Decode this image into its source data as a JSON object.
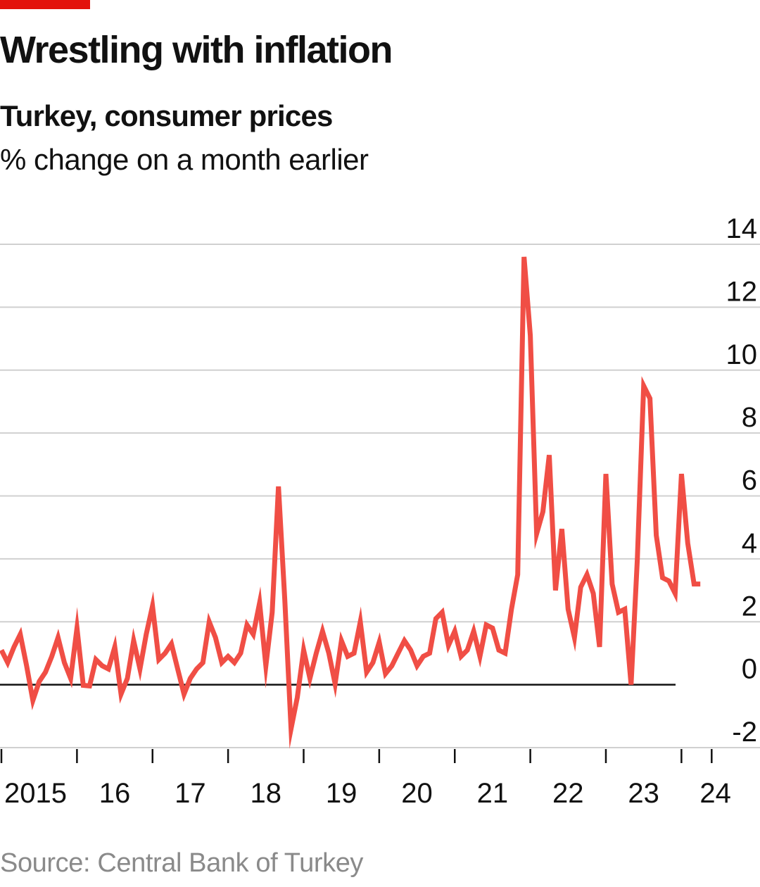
{
  "header": {
    "title": "Wrestling with inflation",
    "subtitle": "Turkey, consumer prices",
    "unit": "% change on a month earlier"
  },
  "footer": {
    "source": "Source: Central Bank of Turkey"
  },
  "colors": {
    "line": "#f04e45",
    "accent": "#e3120b",
    "grid": "#d0d0d0",
    "axis": "#111111"
  },
  "chart_data": {
    "type": "line",
    "title": "Wrestling with inflation",
    "subtitle": "Turkey, consumer prices",
    "ylabel": "% change on a month earlier",
    "xlabel": "",
    "ylim": [
      -2,
      14
    ],
    "xlim": [
      2015.0,
      2024.9
    ],
    "yticks": [
      {
        "value": -2,
        "label": "-2"
      },
      {
        "value": 0,
        "label": "0"
      },
      {
        "value": 2,
        "label": "2"
      },
      {
        "value": 4,
        "label": "4"
      },
      {
        "value": 6,
        "label": "6"
      },
      {
        "value": 8,
        "label": "8"
      },
      {
        "value": 10,
        "label": "10"
      },
      {
        "value": 12,
        "label": "12"
      },
      {
        "value": 14,
        "label": "14"
      }
    ],
    "xticks": [
      {
        "value": 2015,
        "label": "2015"
      },
      {
        "value": 2016,
        "label": "16"
      },
      {
        "value": 2017,
        "label": "17"
      },
      {
        "value": 2018,
        "label": "18"
      },
      {
        "value": 2019,
        "label": "19"
      },
      {
        "value": 2020,
        "label": "20"
      },
      {
        "value": 2021,
        "label": "21"
      },
      {
        "value": 2022,
        "label": "22"
      },
      {
        "value": 2023,
        "label": "23"
      },
      {
        "value": 2024,
        "label": "24"
      }
    ],
    "series": [
      {
        "name": "Turkey consumer prices, % change on a month earlier",
        "start": [
          2015,
          1
        ],
        "values": [
          1.1,
          0.7,
          1.2,
          1.6,
          0.6,
          -0.5,
          0.1,
          0.4,
          0.9,
          1.5,
          0.7,
          0.2,
          1.8,
          -0.02,
          -0.04,
          0.8,
          0.6,
          0.5,
          1.2,
          -0.3,
          0.2,
          1.4,
          0.5,
          1.6,
          2.5,
          0.8,
          1.0,
          1.3,
          0.5,
          -0.3,
          0.2,
          0.5,
          0.7,
          2.0,
          1.5,
          0.7,
          0.9,
          0.7,
          1.0,
          1.9,
          1.6,
          2.6,
          0.6,
          2.3,
          6.3,
          2.7,
          -1.4,
          -0.4,
          1.1,
          0.2,
          1.0,
          1.7,
          1.0,
          0.03,
          1.4,
          0.9,
          1.0,
          2.0,
          0.4,
          0.7,
          1.35,
          0.35,
          0.6,
          1.0,
          1.4,
          1.1,
          0.6,
          0.9,
          1.0,
          2.1,
          2.3,
          1.25,
          1.7,
          0.9,
          1.1,
          1.7,
          0.9,
          1.9,
          1.8,
          1.1,
          1.0,
          2.4,
          3.5,
          13.6,
          11.1,
          4.8,
          5.5,
          7.3,
          3.0,
          4.95,
          2.4,
          1.5,
          3.1,
          3.5,
          2.9,
          1.2,
          6.7,
          3.2,
          2.3,
          2.4,
          0.0,
          4.0,
          9.5,
          9.1,
          4.75,
          3.4,
          3.3,
          2.9,
          6.7,
          4.5,
          3.2,
          3.2
        ]
      }
    ]
  }
}
